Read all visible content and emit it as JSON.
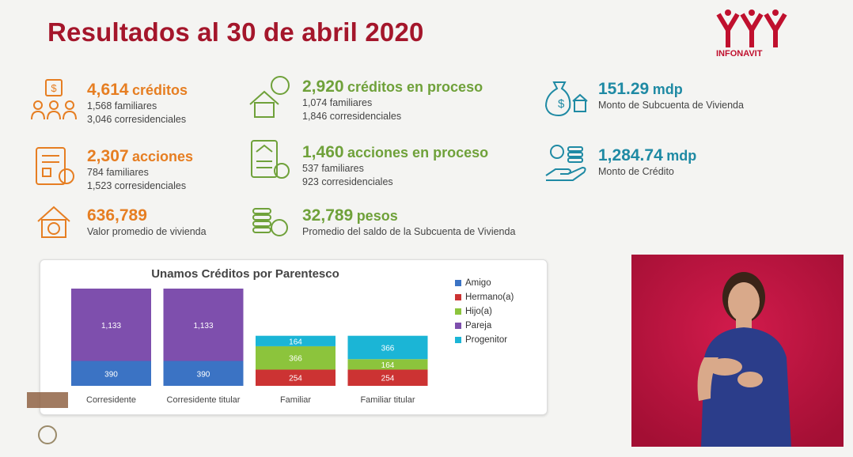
{
  "title": "Resultados al 30 de abril 2020",
  "logo_text": "INFONAVIT",
  "stats": {
    "creditos": {
      "value": "4,614",
      "unit": "créditos",
      "line1": "1,568 familiares",
      "line2": "3,046 corresidenciales"
    },
    "acciones": {
      "value": "2,307",
      "unit": "acciones",
      "line1": "784 familiares",
      "line2": "1,523 corresidenciales"
    },
    "valor": {
      "value": "636,789",
      "line1": "Valor promedio de vivienda"
    },
    "creditos_proceso": {
      "value": "2,920",
      "unit": "créditos en proceso",
      "line1": "1,074 familiares",
      "line2": "1,846 corresidenciales"
    },
    "acciones_proceso": {
      "value": "1,460",
      "unit": "acciones en proceso",
      "line1": "537 familiares",
      "line2": "923 corresidenciales"
    },
    "pesos": {
      "value": "32,789",
      "unit": "pesos",
      "line1": "Promedio del saldo de la  Subcuenta de Vivienda"
    },
    "subcuenta": {
      "value": "151.29",
      "unit": "mdp",
      "line1": "Monto de Subcuenta de Vivienda"
    },
    "monto": {
      "value": "1,284.74",
      "unit": "mdp",
      "line1": "Monto de Crédito"
    }
  },
  "colors": {
    "title": "#a4162b",
    "orange": "#e67e22",
    "green": "#6fa13a",
    "teal": "#1f8aa4"
  },
  "chart_data": {
    "type": "bar",
    "stacked": true,
    "title": "Unamos Créditos por Parentesco",
    "categories": [
      "Corresidente",
      "Corresidente titular",
      "Familiar",
      "Familiar titular"
    ],
    "series": [
      {
        "name": "Amigo",
        "color": "#3b73c4",
        "values": [
          390,
          390,
          0,
          0
        ]
      },
      {
        "name": "Hermano(a)",
        "color": "#cc3333",
        "values": [
          0,
          0,
          254,
          254
        ]
      },
      {
        "name": "Hijo(a)",
        "color": "#8cc43c",
        "values": [
          0,
          0,
          366,
          164
        ]
      },
      {
        "name": "Pareja",
        "color": "#7e4fad",
        "values": [
          1133,
          1133,
          0,
          0
        ]
      },
      {
        "name": "Progenitor",
        "color": "#1bb5d6",
        "values": [
          0,
          0,
          164,
          366
        ]
      }
    ],
    "legend": "right"
  }
}
